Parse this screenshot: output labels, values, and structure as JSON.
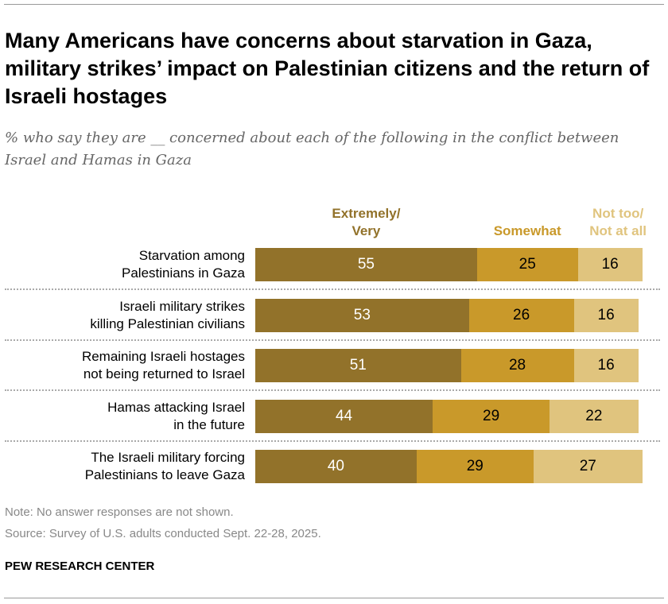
{
  "title": "Many Americans have concerns about starvation in Gaza, military strikes’ impact on Palestinian citizens and the return of Israeli hostages",
  "subtitle": "% who say they are __ concerned about each of the following in the conflict between Israel and Hamas in Gaza",
  "note": "Note: No answer responses are not shown.",
  "source": "Source: Survey of U.S. adults conducted Sept. 22-28, 2025.",
  "brand": "PEW RESEARCH CENTER",
  "chart_data": {
    "type": "bar",
    "orientation": "horizontal",
    "stacked": true,
    "legend_placement": "top",
    "categories": [
      "Starvation among Palestinians in Gaza",
      "Israeli military strikes killing Palestinian civilians",
      "Remaining Israeli hostages not being returned to Israel",
      "Hamas attacking Israel in the future",
      "The Israeli military forcing Palestinians to leave Gaza"
    ],
    "category_lines": [
      [
        "Starvation among",
        "Palestinians in Gaza"
      ],
      [
        "Israeli military strikes",
        "killing Palestinian civilians"
      ],
      [
        "Remaining Israeli hostages",
        "not being returned to Israel"
      ],
      [
        "Hamas attacking Israel",
        "in the future"
      ],
      [
        "The Israeli military forcing",
        "Palestinians to leave Gaza"
      ]
    ],
    "series": [
      {
        "name": "Extremely/ Very",
        "name_lines": [
          "Extremely/",
          "Very"
        ],
        "color": "#92722A",
        "label_color": "#ffffff",
        "values": [
          55,
          53,
          51,
          44,
          40
        ]
      },
      {
        "name": "Somewhat",
        "name_lines": [
          "Somewhat"
        ],
        "color": "#C9992A",
        "label_color": "#000000",
        "values": [
          25,
          26,
          28,
          29,
          29
        ]
      },
      {
        "name": "Not too/ Not at all",
        "name_lines": [
          "Not too/",
          "Not at all"
        ],
        "color": "#E0C47E",
        "label_color": "#000000",
        "values": [
          16,
          16,
          16,
          22,
          27
        ]
      }
    ],
    "xlim": [
      0,
      100
    ],
    "grid": false
  }
}
